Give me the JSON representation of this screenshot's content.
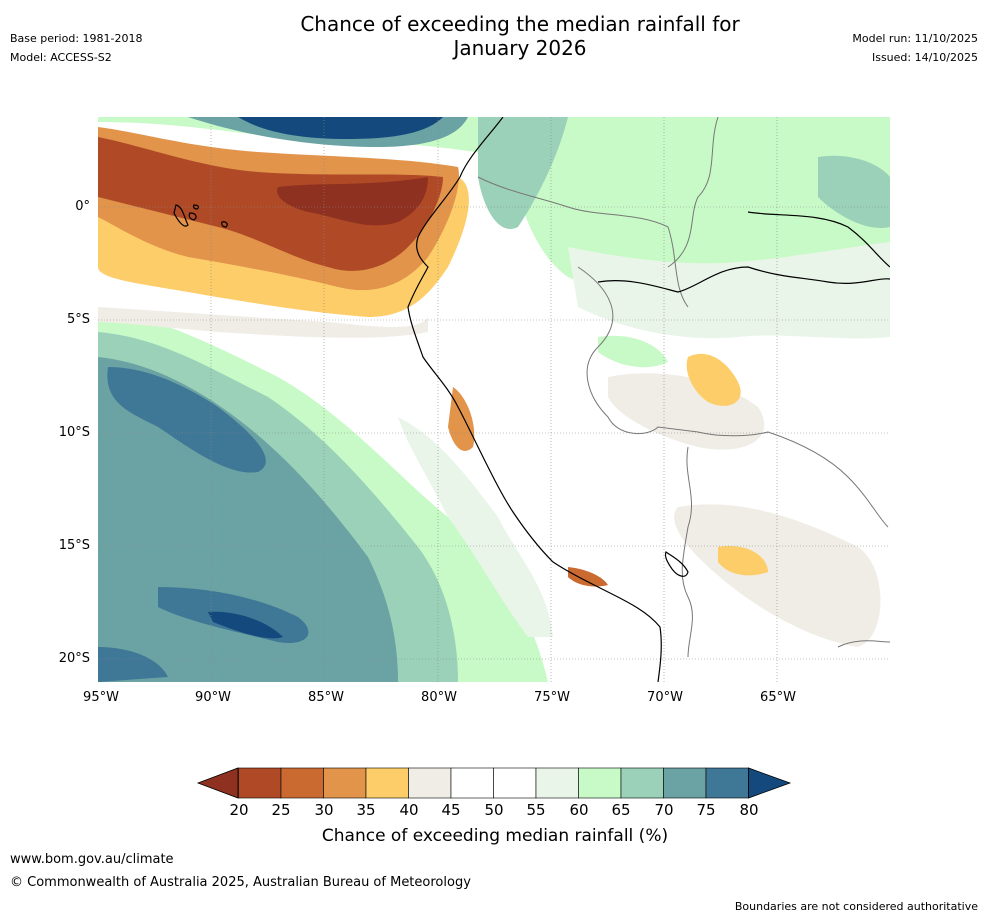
{
  "header": {
    "title_line1": "Chance of exceeding the median rainfall for",
    "title_line2": "January 2026",
    "base_period": "Base period: 1981-2018",
    "model": "Model: ACCESS-S2",
    "model_run": "Model run: 11/10/2025",
    "issued": "Issued: 14/10/2025"
  },
  "map": {
    "lon_labels": [
      "95°W",
      "90°W",
      "85°W",
      "80°W",
      "75°W",
      "70°W",
      "65°W"
    ],
    "lat_labels": [
      "0°",
      "5°S",
      "10°S",
      "15°S",
      "20°S"
    ],
    "lon_range": [
      -95,
      -60
    ],
    "lat_range": [
      -21,
      4
    ]
  },
  "colorbar": {
    "ticks": [
      "20",
      "25",
      "30",
      "35",
      "40",
      "45",
      "50",
      "55",
      "60",
      "65",
      "70",
      "75",
      "80"
    ],
    "colors": [
      "#8e3120",
      "#b04a26",
      "#cb6a30",
      "#e1944a",
      "#fdcd6a",
      "#f0ede6",
      "#ffffff",
      "#ffffff",
      "#eaf5ea",
      "#c8fac8",
      "#9bd1b8",
      "#6ba3a4",
      "#3f7796",
      "#14497d"
    ],
    "label": "Chance of exceeding median rainfall (%)"
  },
  "footer": {
    "url": "www.bom.gov.au/climate",
    "copyright": "© Commonwealth of Australia 2025, Australian Bureau of Meteorology",
    "disclaimer": "Boundaries are not considered authoritative"
  }
}
